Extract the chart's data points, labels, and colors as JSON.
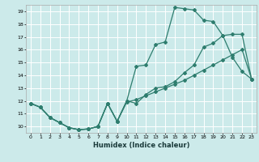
{
  "xlabel": "Humidex (Indice chaleur)",
  "bg_color": "#cceaea",
  "grid_color": "#ffffff",
  "line_color": "#2e7d6e",
  "xlim": [
    -0.5,
    23.5
  ],
  "ylim": [
    9.5,
    19.5
  ],
  "xticks": [
    0,
    1,
    2,
    3,
    4,
    5,
    6,
    7,
    8,
    9,
    10,
    11,
    12,
    13,
    14,
    15,
    16,
    17,
    18,
    19,
    20,
    21,
    22,
    23
  ],
  "yticks": [
    10,
    11,
    12,
    13,
    14,
    15,
    16,
    17,
    18,
    19
  ],
  "curve1_x": [
    0,
    1,
    2,
    3,
    4,
    5,
    6,
    7,
    8,
    9,
    10,
    11,
    12,
    13,
    14,
    15,
    16,
    17,
    18,
    19,
    20,
    21,
    22,
    23
  ],
  "curve1_y": [
    11.8,
    11.5,
    10.7,
    10.3,
    9.9,
    9.75,
    9.8,
    10.0,
    11.8,
    10.4,
    12.0,
    11.8,
    12.5,
    13.0,
    13.1,
    13.5,
    14.2,
    14.8,
    16.2,
    16.5,
    17.1,
    17.2,
    17.2,
    13.7
  ],
  "curve2_x": [
    0,
    1,
    2,
    3,
    4,
    5,
    6,
    7,
    8,
    9,
    10,
    11,
    12,
    13,
    14,
    15,
    16,
    17,
    18,
    19,
    20,
    21,
    22,
    23
  ],
  "curve2_y": [
    11.8,
    11.5,
    10.7,
    10.3,
    9.9,
    9.75,
    9.8,
    10.0,
    11.8,
    10.4,
    12.0,
    14.7,
    14.8,
    16.4,
    16.6,
    19.3,
    19.2,
    19.1,
    18.3,
    18.2,
    17.1,
    15.4,
    14.3,
    13.7
  ],
  "curve3_x": [
    0,
    1,
    2,
    3,
    4,
    5,
    6,
    7,
    8,
    9,
    10,
    11,
    12,
    13,
    14,
    15,
    16,
    17,
    18,
    19,
    20,
    21,
    22,
    23
  ],
  "curve3_y": [
    11.8,
    11.5,
    10.7,
    10.3,
    9.9,
    9.75,
    9.8,
    10.0,
    11.8,
    10.4,
    11.9,
    12.1,
    12.4,
    12.7,
    13.0,
    13.3,
    13.6,
    14.0,
    14.4,
    14.8,
    15.2,
    15.6,
    16.0,
    13.7
  ]
}
